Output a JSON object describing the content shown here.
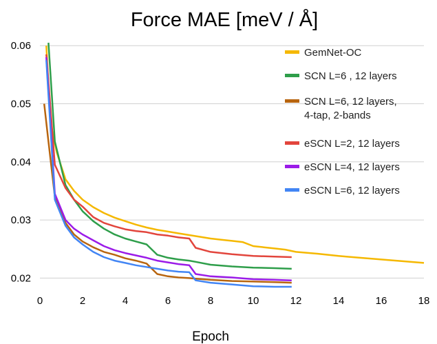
{
  "chart_data": {
    "type": "line",
    "title": "Force MAE [meV / Å]",
    "xlabel": "Epoch",
    "ylabel": "",
    "xlim": [
      0,
      18
    ],
    "ylim": [
      0.0185,
      0.0605
    ],
    "x_ticks": [
      "0",
      "2",
      "4",
      "6",
      "8",
      "10",
      "12",
      "14",
      "16",
      "18"
    ],
    "y_ticks": [
      "0.02",
      "0.03",
      "0.04",
      "0.05",
      "0.06"
    ],
    "grid": "horizontal",
    "legend_position": "top-right",
    "series": [
      {
        "name": "GemNet-OC",
        "color": "#F5B800",
        "x": [
          0.3,
          0.5,
          0.8,
          1.2,
          1.6,
          2.0,
          2.5,
          3.0,
          3.5,
          4.0,
          4.5,
          5.0,
          5.5,
          6.0,
          6.5,
          7.0,
          7.5,
          8.0,
          8.5,
          9.0,
          9.5,
          10.0,
          10.5,
          11.0,
          11.5,
          12.0,
          13.0,
          14.0,
          15.0,
          16.0,
          17.0,
          18.0
        ],
        "y": [
          0.06,
          0.0465,
          0.0415,
          0.037,
          0.035,
          0.0335,
          0.0322,
          0.0312,
          0.0304,
          0.0298,
          0.0292,
          0.0287,
          0.0283,
          0.028,
          0.0277,
          0.0274,
          0.0271,
          0.0268,
          0.0266,
          0.0264,
          0.0262,
          0.0255,
          0.0253,
          0.0251,
          0.0249,
          0.0245,
          0.0242,
          0.0238,
          0.0235,
          0.0232,
          0.0229,
          0.0226
        ]
      },
      {
        "name": "SCN L=6 , 12 layers",
        "color": "#2E9E4A",
        "x": [
          0.4,
          0.7,
          1.2,
          1.6,
          2.0,
          2.5,
          3.0,
          3.5,
          4.0,
          4.5,
          5.0,
          5.5,
          6.0,
          6.5,
          7.0,
          7.3,
          8.0,
          9.0,
          10.0,
          11.0,
          11.8
        ],
        "y": [
          0.0605,
          0.0435,
          0.036,
          0.0335,
          0.0315,
          0.0298,
          0.0285,
          0.0275,
          0.0268,
          0.0263,
          0.0258,
          0.024,
          0.0235,
          0.0232,
          0.023,
          0.0228,
          0.0223,
          0.022,
          0.0218,
          0.0217,
          0.0216
        ]
      },
      {
        "name": "SCN L=6, 12 layers,",
        "name_line2": "4-tap, 2-bands",
        "color": "#B8650F",
        "x": [
          0.2,
          0.4,
          0.7,
          1.2,
          1.6,
          2.0,
          2.5,
          3.0,
          3.5,
          4.0,
          4.5,
          5.0,
          5.5,
          6.0,
          6.5,
          7.0,
          7.3,
          8.0,
          9.0,
          10.0,
          11.0,
          11.8
        ],
        "y": [
          0.05,
          0.0435,
          0.034,
          0.0295,
          0.0275,
          0.0263,
          0.0253,
          0.0245,
          0.024,
          0.0234,
          0.023,
          0.0225,
          0.0207,
          0.0203,
          0.0201,
          0.02,
          0.0199,
          0.0197,
          0.0195,
          0.0194,
          0.0193,
          0.0192
        ]
      },
      {
        "name": "eSCN L=2, 12 layers",
        "color": "#E2453C",
        "x": [
          0.3,
          0.7,
          1.2,
          1.6,
          2.0,
          2.5,
          3.0,
          3.5,
          4.0,
          4.5,
          5.0,
          5.5,
          6.0,
          6.5,
          7.0,
          7.3,
          8.0,
          9.0,
          10.0,
          11.0,
          11.8
        ],
        "y": [
          0.0585,
          0.0395,
          0.0355,
          0.0335,
          0.0323,
          0.0305,
          0.0295,
          0.0289,
          0.0284,
          0.0281,
          0.0279,
          0.0275,
          0.0273,
          0.027,
          0.0268,
          0.0252,
          0.0245,
          0.0241,
          0.0238,
          0.0237,
          0.0236
        ]
      },
      {
        "name": "eSCN L=4, 12 layers",
        "color": "#9B1BE8",
        "x": [
          0.3,
          0.7,
          1.2,
          1.6,
          2.0,
          2.5,
          3.0,
          3.5,
          4.0,
          4.5,
          5.0,
          5.5,
          6.0,
          6.5,
          7.0,
          7.3,
          8.0,
          9.0,
          10.0,
          11.0,
          11.8
        ],
        "y": [
          0.058,
          0.0345,
          0.03,
          0.0285,
          0.0275,
          0.0265,
          0.0255,
          0.0248,
          0.0243,
          0.0239,
          0.0235,
          0.023,
          0.0227,
          0.0224,
          0.0222,
          0.0207,
          0.0203,
          0.0201,
          0.0198,
          0.0197,
          0.0196
        ]
      },
      {
        "name": "eSCN L=6, 12 layers",
        "color": "#4285F4",
        "x": [
          0.3,
          0.7,
          1.2,
          1.6,
          2.0,
          2.5,
          3.0,
          3.5,
          4.0,
          4.5,
          5.0,
          5.5,
          6.0,
          6.5,
          7.0,
          7.3,
          8.0,
          9.0,
          10.0,
          11.0,
          11.8
        ],
        "y": [
          0.0575,
          0.0335,
          0.029,
          0.027,
          0.0258,
          0.0245,
          0.0236,
          0.023,
          0.0226,
          0.0222,
          0.0219,
          0.0216,
          0.0213,
          0.0211,
          0.021,
          0.0196,
          0.0192,
          0.0189,
          0.0186,
          0.0185,
          0.0185
        ]
      }
    ]
  }
}
